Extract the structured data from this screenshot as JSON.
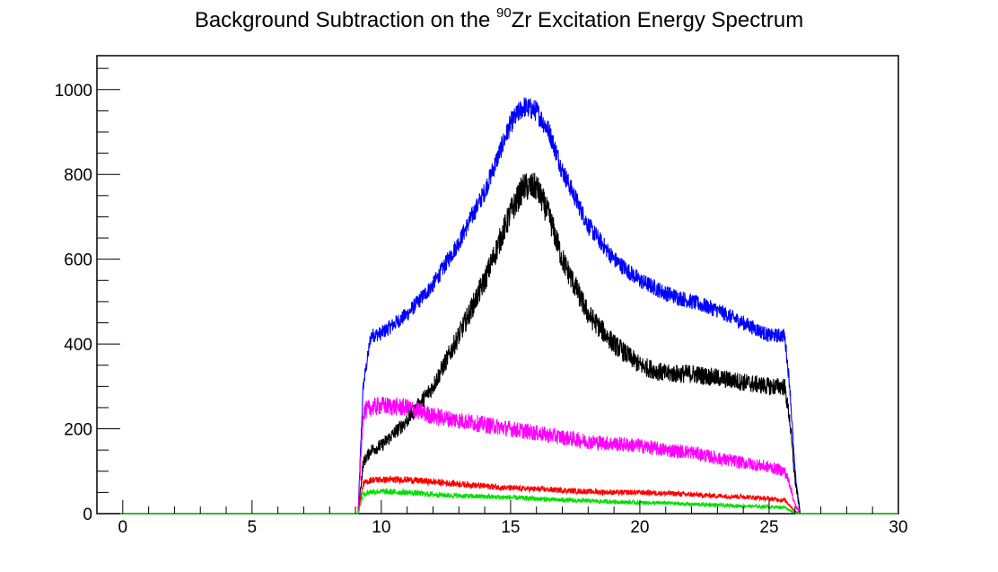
{
  "title": {
    "prefix": "Background Subtraction on the ",
    "superscript": "90",
    "suffix": "Zr Excitation Energy Spectrum"
  },
  "chart_data": {
    "type": "line",
    "title": "Background Subtraction on the 90Zr Excitation Energy Spectrum",
    "xlabel": "",
    "ylabel": "",
    "xlim": [
      -1,
      30
    ],
    "ylim": [
      0,
      1080
    ],
    "xticks": [
      0,
      5,
      10,
      15,
      20,
      25,
      30
    ],
    "yticks": [
      0,
      200,
      400,
      600,
      800,
      1000
    ],
    "grid": false,
    "legend": "none",
    "series": [
      {
        "color": "#0000ff",
        "noise": 26,
        "x": [
          -1,
          9.1,
          9.3,
          9.6,
          10,
          11,
          12,
          13,
          14,
          15,
          15.5,
          16,
          16.5,
          17,
          18,
          19,
          20,
          21,
          22,
          23,
          24,
          25,
          25.6,
          25.8,
          26.0,
          26.2,
          30
        ],
        "values": [
          0,
          0,
          300,
          420,
          425,
          470,
          540,
          640,
          760,
          920,
          960,
          950,
          900,
          810,
          680,
          600,
          550,
          520,
          500,
          480,
          450,
          420,
          420,
          300,
          100,
          0,
          0
        ]
      },
      {
        "color": "#000000",
        "noise": 34,
        "x": [
          -1,
          9.1,
          9.3,
          9.6,
          10,
          11,
          12,
          13,
          14,
          15,
          15.5,
          16,
          16.5,
          17,
          18,
          19,
          20,
          21,
          22,
          23,
          24,
          25,
          25.6,
          25.8,
          26.0,
          26.2,
          30
        ],
        "values": [
          0,
          0,
          120,
          150,
          160,
          220,
          300,
          420,
          550,
          710,
          770,
          770,
          700,
          600,
          470,
          400,
          350,
          330,
          330,
          320,
          310,
          300,
          300,
          220,
          80,
          0,
          0
        ]
      },
      {
        "color": "#ff00ff",
        "noise": 22,
        "x": [
          -1,
          9.1,
          9.3,
          9.6,
          10,
          11,
          12,
          13,
          14,
          15,
          16,
          17,
          18,
          19,
          20,
          21,
          22,
          23,
          24,
          25,
          25.6,
          25.8,
          26.0,
          26.2,
          30
        ],
        "values": [
          0,
          0,
          240,
          250,
          255,
          250,
          230,
          220,
          210,
          200,
          190,
          180,
          170,
          165,
          160,
          150,
          145,
          130,
          120,
          110,
          100,
          70,
          20,
          0,
          0
        ]
      },
      {
        "color": "#ff0000",
        "noise": 8,
        "x": [
          -1,
          9.1,
          9.3,
          9.6,
          10,
          11,
          12,
          13,
          14,
          15,
          16,
          17,
          18,
          19,
          20,
          21,
          22,
          23,
          24,
          25,
          25.6,
          25.8,
          26.0,
          26.2,
          30
        ],
        "values": [
          0,
          0,
          70,
          80,
          80,
          80,
          75,
          70,
          65,
          60,
          58,
          55,
          52,
          50,
          50,
          48,
          45,
          42,
          40,
          35,
          32,
          20,
          5,
          0,
          0
        ]
      },
      {
        "color": "#00e000",
        "noise": 7,
        "x": [
          -1,
          9.1,
          9.3,
          9.6,
          10,
          11,
          12,
          13,
          14,
          15,
          16,
          17,
          18,
          19,
          20,
          21,
          22,
          23,
          24,
          25,
          25.6,
          25.8,
          26.0,
          26.2,
          30
        ],
        "values": [
          0,
          0,
          45,
          52,
          52,
          50,
          45,
          42,
          40,
          38,
          35,
          32,
          30,
          28,
          26,
          25,
          22,
          20,
          18,
          16,
          15,
          8,
          2,
          0,
          0
        ]
      }
    ]
  }
}
